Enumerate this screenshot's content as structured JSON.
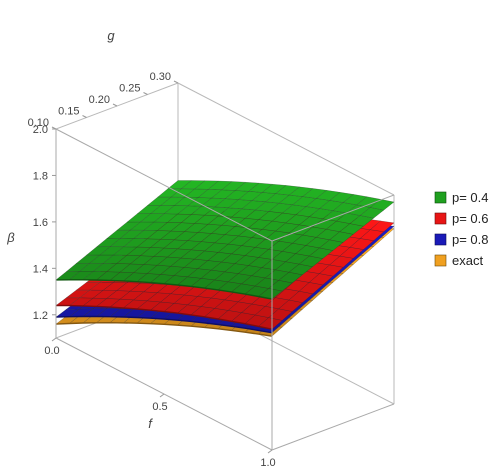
{
  "chart_data": {
    "type": "surface3d",
    "axes": {
      "f": {
        "label": "f",
        "range": [
          0,
          1
        ],
        "ticks": [
          "0.0",
          "0.5",
          "1.0"
        ]
      },
      "g": {
        "label": "g",
        "range": [
          0.1,
          0.3
        ],
        "ticks": [
          "0.10",
          "0.15",
          "0.20",
          "0.25",
          "0.30"
        ]
      },
      "beta": {
        "label": "β",
        "range": [
          1.1,
          2.0
        ],
        "ticks": [
          "1.2",
          "1.4",
          "1.6",
          "1.8",
          "2.0"
        ]
      }
    },
    "grid": "mesh",
    "legend_position": "right",
    "series": [
      {
        "name": "p= 0.4",
        "color": "#1fa01f",
        "values": {
          "f0_g0.10": 1.35,
          "f0_g0.30": 1.58,
          "f1_g0.10": 1.75,
          "f1_g0.30": 1.97
        }
      },
      {
        "name": "p= 0.6",
        "color": "#e81515",
        "values": {
          "f0_g0.10": 1.24,
          "f0_g0.30": 1.44,
          "f1_g0.10": 1.62,
          "f1_g0.30": 1.88
        }
      },
      {
        "name": "p= 0.8",
        "color": "#1a1ab8",
        "values": {
          "f0_g0.10": 1.19,
          "f0_g0.30": 1.39,
          "f1_g0.10": 1.605,
          "f1_g0.30": 1.865
        }
      },
      {
        "name": "exact",
        "color": "#f0a020",
        "values": {
          "f0_g0.10": 1.16,
          "f0_g0.30": 1.37,
          "f1_g0.10": 1.59,
          "f1_g0.30": 1.855
        }
      }
    ]
  }
}
